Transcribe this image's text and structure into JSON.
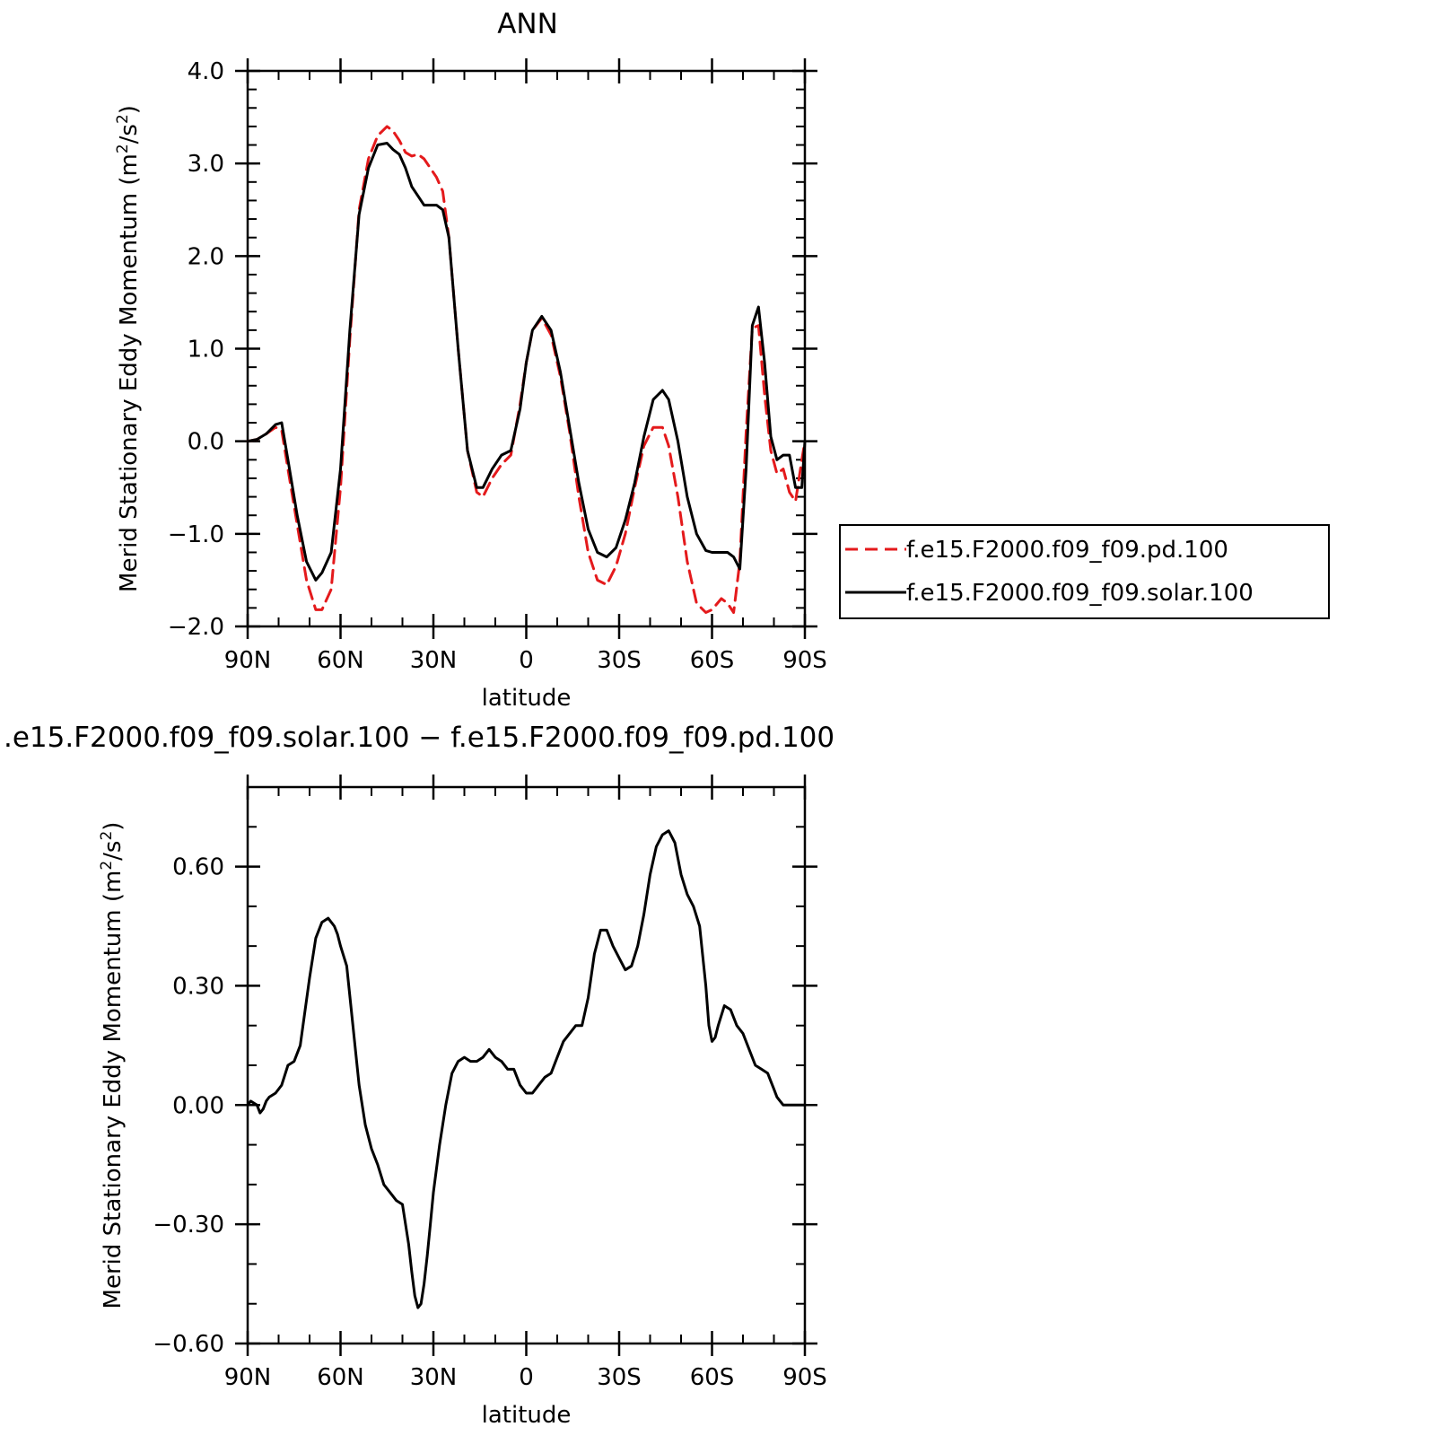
{
  "colors": {
    "pd": "#e41a1c",
    "solar": "#000000"
  },
  "chart_data": [
    {
      "type": "line",
      "title": "ANN",
      "xlabel": "latitude",
      "ylabel": "Merid Stationary Eddy Momentum (m²/s²)",
      "xlim": [
        90,
        -90
      ],
      "ylim": [
        -2.0,
        4.0
      ],
      "xticks": [
        {
          "value": 90,
          "label": "90N"
        },
        {
          "value": 60,
          "label": "60N"
        },
        {
          "value": 30,
          "label": "30N"
        },
        {
          "value": 0,
          "label": "0"
        },
        {
          "value": -30,
          "label": "30S"
        },
        {
          "value": -60,
          "label": "60S"
        },
        {
          "value": -90,
          "label": "90S"
        }
      ],
      "yticks": [
        {
          "value": 4.0,
          "label": "4.0"
        },
        {
          "value": 3.0,
          "label": "3.0"
        },
        {
          "value": 2.0,
          "label": "2.0"
        },
        {
          "value": 1.0,
          "label": "1.0"
        },
        {
          "value": 0.0,
          "label": "0.0"
        },
        {
          "value": -1.0,
          "label": "−1.0"
        },
        {
          "value": -2.0,
          "label": "−2.0"
        }
      ],
      "legend": "right",
      "series": [
        {
          "name": "f.e15.F2000.f09_f09.pd.100",
          "color": "#e41a1c",
          "style": "dashed",
          "x": [
            90,
            87,
            84,
            81,
            79,
            77,
            74,
            71,
            68,
            66,
            63,
            60,
            57,
            54,
            51,
            48,
            45,
            43,
            41,
            39,
            37,
            35,
            33,
            31,
            29,
            27,
            25,
            22,
            19,
            16,
            14,
            11,
            8,
            5,
            2,
            0,
            -2,
            -5,
            -8,
            -11,
            -14,
            -17,
            -20,
            -23,
            -26,
            -29,
            -32,
            -35,
            -38,
            -41,
            -44,
            -46,
            -49,
            -52,
            -55,
            -58,
            -60,
            -63,
            -65,
            -67,
            -69,
            -71,
            -73,
            -75,
            -77,
            -79,
            -81,
            -83,
            -85,
            -87,
            -89,
            -90
          ],
          "y": [
            0.0,
            0.02,
            0.08,
            0.15,
            0.12,
            -0.3,
            -0.9,
            -1.5,
            -1.82,
            -1.82,
            -1.6,
            -0.5,
            1.1,
            2.5,
            3.05,
            3.3,
            3.4,
            3.35,
            3.25,
            3.12,
            3.08,
            3.1,
            3.05,
            2.95,
            2.85,
            2.7,
            2.2,
            1.0,
            -0.1,
            -0.55,
            -0.6,
            -0.4,
            -0.25,
            -0.15,
            0.4,
            0.85,
            1.2,
            1.33,
            1.15,
            0.7,
            0.1,
            -0.6,
            -1.2,
            -1.5,
            -1.55,
            -1.35,
            -1.0,
            -0.5,
            -0.05,
            0.15,
            0.15,
            -0.05,
            -0.6,
            -1.3,
            -1.75,
            -1.85,
            -1.82,
            -1.7,
            -1.75,
            -1.85,
            -1.3,
            0.1,
            1.22,
            1.25,
            0.5,
            -0.1,
            -0.35,
            -0.3,
            -0.55,
            -0.65,
            -0.2,
            0.0
          ]
        },
        {
          "name": "f.e15.F2000.f09_f09.solar.100",
          "color": "#000000",
          "style": "solid",
          "x": [
            90,
            87,
            84,
            81,
            79,
            77,
            74,
            71,
            68,
            66,
            63,
            60,
            57,
            54,
            51,
            48,
            45,
            43,
            41,
            39,
            37,
            35,
            33,
            31,
            29,
            27,
            25,
            22,
            19,
            16,
            14,
            11,
            8,
            5,
            2,
            0,
            -2,
            -5,
            -8,
            -11,
            -14,
            -17,
            -20,
            -23,
            -26,
            -29,
            -32,
            -35,
            -38,
            -41,
            -44,
            -46,
            -49,
            -52,
            -55,
            -58,
            -60,
            -63,
            -65,
            -67,
            -69,
            -71,
            -73,
            -75,
            -77,
            -79,
            -81,
            -83,
            -85,
            -87,
            -89,
            -90
          ],
          "y": [
            0.0,
            0.02,
            0.08,
            0.18,
            0.2,
            -0.2,
            -0.8,
            -1.3,
            -1.5,
            -1.42,
            -1.2,
            -0.3,
            1.2,
            2.45,
            2.95,
            3.2,
            3.22,
            3.15,
            3.1,
            2.95,
            2.75,
            2.65,
            2.55,
            2.55,
            2.55,
            2.5,
            2.2,
            1.0,
            -0.1,
            -0.5,
            -0.5,
            -0.3,
            -0.15,
            -0.1,
            0.35,
            0.85,
            1.2,
            1.35,
            1.2,
            0.75,
            0.15,
            -0.45,
            -0.95,
            -1.2,
            -1.25,
            -1.15,
            -0.85,
            -0.45,
            0.05,
            0.45,
            0.55,
            0.45,
            0.0,
            -0.6,
            -1.0,
            -1.18,
            -1.2,
            -1.2,
            -1.2,
            -1.25,
            -1.38,
            -0.3,
            1.25,
            1.45,
            0.85,
            0.05,
            -0.2,
            -0.15,
            -0.15,
            -0.5,
            -0.5,
            0.0
          ]
        }
      ]
    },
    {
      "type": "line",
      "title": ".e15.F2000.f09_f09.solar.100 − f.e15.F2000.f09_f09.pd.100",
      "xlabel": "latitude",
      "ylabel": "Merid Stationary Eddy Momentum (m²/s²)",
      "xlim": [
        90,
        -90
      ],
      "ylim": [
        -0.6,
        0.8
      ],
      "xticks": [
        {
          "value": 90,
          "label": "90N"
        },
        {
          "value": 60,
          "label": "60N"
        },
        {
          "value": 30,
          "label": "30N"
        },
        {
          "value": 0,
          "label": "0"
        },
        {
          "value": -30,
          "label": "30S"
        },
        {
          "value": -60,
          "label": "60S"
        },
        {
          "value": -90,
          "label": "90S"
        }
      ],
      "yticks": [
        {
          "value": 0.6,
          "label": "0.60"
        },
        {
          "value": 0.3,
          "label": "0.30"
        },
        {
          "value": 0.0,
          "label": "0.00"
        },
        {
          "value": -0.3,
          "label": "−0.30"
        },
        {
          "value": -0.6,
          "label": "−0.60"
        }
      ],
      "series": [
        {
          "color": "#000000",
          "style": "solid",
          "x": [
            90,
            89,
            87,
            86,
            85,
            84,
            83,
            81,
            79,
            77,
            75,
            73,
            70,
            68,
            66,
            64,
            62,
            61,
            60,
            58,
            56,
            54,
            52,
            50,
            48,
            46,
            44,
            42,
            40,
            38,
            37,
            36,
            35,
            34,
            33,
            32,
            31,
            30,
            28,
            26,
            24,
            22,
            20,
            18,
            16,
            14,
            12,
            10,
            8,
            6,
            4,
            2,
            0,
            -2,
            -4,
            -6,
            -8,
            -10,
            -12,
            -14,
            -16,
            -18,
            -20,
            -22,
            -24,
            -26,
            -28,
            -30,
            -32,
            -34,
            -36,
            -38,
            -40,
            -42,
            -44,
            -46,
            -48,
            -50,
            -52,
            -54,
            -56,
            -58,
            -59,
            -60,
            -61,
            -62,
            -64,
            -66,
            -68,
            -70,
            -72,
            -74,
            -76,
            -78,
            -79,
            -80,
            -81,
            -82,
            -83,
            -84,
            -85,
            -86,
            -87,
            -88,
            -89,
            -90
          ],
          "y": [
            0.0,
            0.01,
            0.0,
            -0.02,
            -0.01,
            0.01,
            0.02,
            0.03,
            0.05,
            0.1,
            0.11,
            0.15,
            0.32,
            0.42,
            0.46,
            0.47,
            0.45,
            0.43,
            0.4,
            0.35,
            0.2,
            0.05,
            -0.05,
            -0.11,
            -0.15,
            -0.2,
            -0.22,
            -0.24,
            -0.25,
            -0.35,
            -0.42,
            -0.48,
            -0.51,
            -0.5,
            -0.45,
            -0.38,
            -0.3,
            -0.22,
            -0.1,
            0.0,
            0.08,
            0.11,
            0.12,
            0.11,
            0.11,
            0.12,
            0.14,
            0.12,
            0.11,
            0.09,
            0.09,
            0.05,
            0.03,
            0.03,
            0.05,
            0.07,
            0.08,
            0.12,
            0.16,
            0.18,
            0.2,
            0.2,
            0.27,
            0.38,
            0.44,
            0.44,
            0.4,
            0.37,
            0.34,
            0.35,
            0.4,
            0.48,
            0.58,
            0.65,
            0.68,
            0.69,
            0.66,
            0.58,
            0.53,
            0.5,
            0.45,
            0.3,
            0.2,
            0.16,
            0.17,
            0.2,
            0.25,
            0.24,
            0.2,
            0.18,
            0.14,
            0.1,
            0.09,
            0.08,
            0.06,
            0.04,
            0.02,
            0.01,
            0.0,
            0.0,
            0.0,
            0.0,
            0.0,
            0.0,
            0.0,
            0.0
          ]
        }
      ]
    }
  ]
}
